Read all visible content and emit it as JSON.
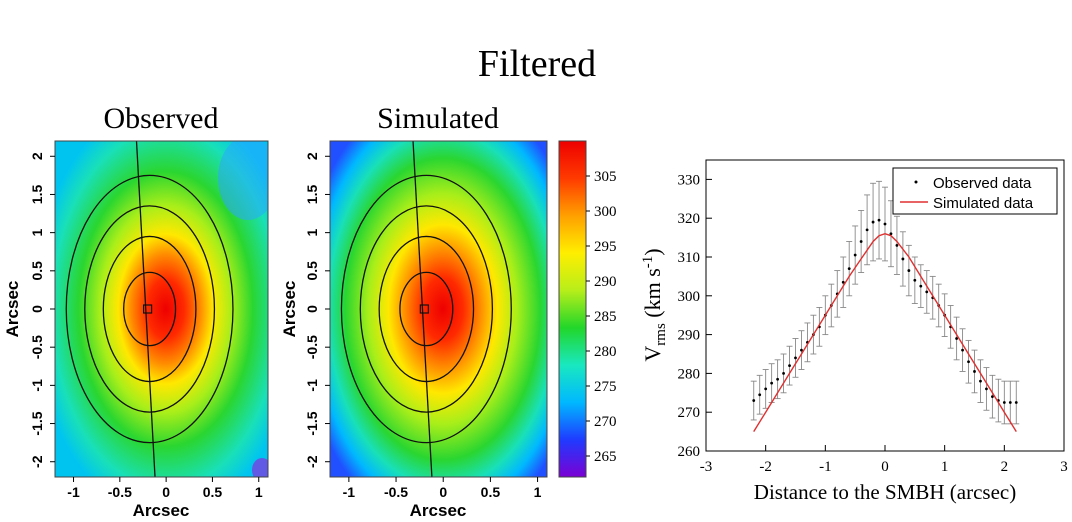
{
  "figure_title": "Filtered",
  "chart_data": [
    {
      "type": "heatmap",
      "title": "Observed",
      "xlabel": "Arcsec",
      "ylabel": "Arcsec",
      "xlim": [
        -1.2,
        1.1
      ],
      "ylim": [
        -2.2,
        2.2
      ],
      "xticks": [
        "-1",
        "-0.5",
        "0",
        "0.5",
        "1"
      ],
      "yticks": [
        "2",
        "1.5",
        "1",
        "0.5",
        "0",
        "-0.5",
        "-1",
        "-1.5",
        "-2"
      ],
      "peak_center": [
        -0.2,
        0.0
      ],
      "contour_semi_axes_arcsec": [
        [
          0.28,
          0.48
        ],
        [
          0.5,
          0.95
        ],
        [
          0.7,
          1.35
        ],
        [
          0.9,
          1.75
        ]
      ]
    },
    {
      "type": "heatmap",
      "title": "Simulated",
      "xlabel": "Arcsec",
      "ylabel": "Arcsec",
      "xlim": [
        -1.2,
        1.1
      ],
      "ylim": [
        -2.2,
        2.2
      ],
      "xticks": [
        "-1",
        "-0.5",
        "0",
        "0.5",
        "1"
      ],
      "yticks": [
        "2",
        "1.5",
        "1",
        "0.5",
        "0",
        "-0.5",
        "-1",
        "-1.5",
        "-2"
      ],
      "peak_center": [
        -0.2,
        0.0
      ],
      "contour_semi_axes_arcsec": [
        [
          0.28,
          0.48
        ],
        [
          0.5,
          0.95
        ],
        [
          0.7,
          1.35
        ],
        [
          0.9,
          1.75
        ]
      ]
    },
    {
      "type": "colorbar",
      "range": [
        262,
        310
      ],
      "ticks": [
        "305",
        "300",
        "295",
        "290",
        "285",
        "280",
        "275",
        "270",
        "265"
      ],
      "colors": [
        "#7b00d4",
        "#1f3bff",
        "#00b8ff",
        "#19e8c0",
        "#22d62a",
        "#b8ee1a",
        "#ffee00",
        "#ffa000",
        "#ff3a00",
        "#ee0000"
      ]
    },
    {
      "type": "scatter",
      "xlabel": "Distance to the SMBH (arcsec)",
      "ylabel_main": "V",
      "ylabel_sub": "rms",
      "ylabel_units": " (km s",
      "ylabel_exp": "-1",
      "ylabel_close": ")",
      "xlim": [
        -3,
        3
      ],
      "ylim": [
        260,
        335
      ],
      "xticks": [
        "-3",
        "-2",
        "-1",
        "0",
        "1",
        "2",
        "3"
      ],
      "yticks": [
        "260",
        "270",
        "280",
        "290",
        "300",
        "310",
        "320",
        "330"
      ],
      "legend": [
        "Observed data",
        "Simulated data"
      ],
      "series": [
        {
          "name": "Observed data",
          "x": [
            -2.2,
            -2.1,
            -2.0,
            -1.9,
            -1.8,
            -1.7,
            -1.6,
            -1.5,
            -1.4,
            -1.3,
            -1.2,
            -1.1,
            -1.0,
            -0.9,
            -0.8,
            -0.7,
            -0.6,
            -0.5,
            -0.4,
            -0.3,
            -0.2,
            -0.1,
            0.0,
            0.1,
            0.2,
            0.3,
            0.4,
            0.5,
            0.6,
            0.7,
            0.8,
            0.9,
            1.0,
            1.1,
            1.2,
            1.3,
            1.4,
            1.5,
            1.6,
            1.7,
            1.8,
            1.9,
            2.0,
            2.1,
            2.2
          ],
          "y": [
            273,
            274.5,
            276,
            277.5,
            278.5,
            280,
            282,
            284,
            286,
            288,
            290,
            292,
            295,
            297.5,
            300.5,
            303.5,
            307,
            310.5,
            314,
            317,
            319,
            319.5,
            318.5,
            316,
            313,
            309.5,
            306.5,
            304,
            302.5,
            301,
            299.5,
            297.5,
            295,
            292,
            289,
            286,
            283,
            280.5,
            278,
            276,
            274,
            273,
            272.5,
            272.5,
            272.5
          ],
          "err": [
            5,
            5,
            5,
            5,
            5,
            5,
            5,
            5,
            5,
            5,
            5,
            5,
            5,
            5.5,
            6,
            6.5,
            7,
            7.5,
            8,
            9,
            10,
            10,
            9.5,
            8.5,
            7.5,
            7,
            6.5,
            6,
            5.5,
            5.5,
            5.5,
            5.5,
            5.5,
            5.5,
            5.5,
            5.5,
            5.5,
            5.5,
            5.5,
            5.5,
            5.5,
            5.5,
            5.5,
            5.5,
            5.5
          ]
        },
        {
          "name": "Simulated data",
          "color": "#e03030",
          "x": [
            -2.2,
            -2.0,
            -1.8,
            -1.6,
            -1.4,
            -1.2,
            -1.0,
            -0.8,
            -0.6,
            -0.4,
            -0.2,
            -0.1,
            0.0,
            0.1,
            0.2,
            0.4,
            0.6,
            0.8,
            1.0,
            1.2,
            1.4,
            1.6,
            1.8,
            2.0,
            2.2
          ],
          "y": [
            265,
            270,
            275,
            280,
            285,
            290,
            295,
            300,
            305,
            309.5,
            314,
            315.5,
            316,
            315.5,
            314,
            310,
            305,
            300,
            295,
            290,
            285,
            280,
            275,
            270,
            265
          ]
        }
      ]
    }
  ]
}
